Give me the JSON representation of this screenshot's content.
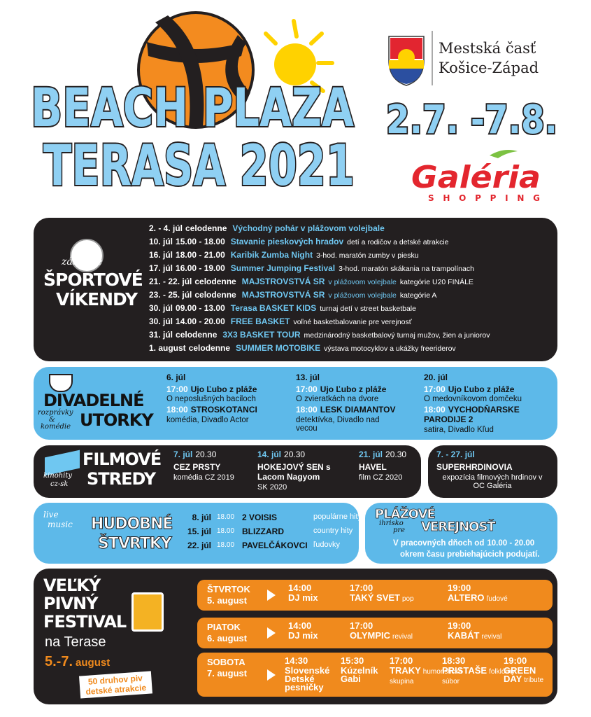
{
  "header": {
    "title_line1": "BEACH PLAZA",
    "title_line2": "TERASA 2021",
    "dates": "2.7. -7.8.",
    "municipality_line1": "Mestská časť",
    "municipality_line2": "Košice-Západ",
    "sponsor": "Galéria",
    "sponsor_sub": "SHOPPING"
  },
  "sports": {
    "label_small": "zábavné",
    "label_line1": "ŠPORTOVÉ",
    "label_line2": "VÍKENDY",
    "events": [
      {
        "date": "2. - 4. júl",
        "time": "celodenne",
        "event": "Východný pohár v plážovom volejbale"
      },
      {
        "date": "10. júl",
        "time": "15.00 - 18.00",
        "event": "Stavanie pieskových hradov",
        "detail": "detí a rodičov a detské atrakcie"
      },
      {
        "date": "16. júl",
        "time": "18.00 - 21.00",
        "event": "Karibik Zumba Night",
        "detail": "3-hod. maratón zumby v piesku"
      },
      {
        "date": "17. júl",
        "time": "16.00 - 19.00",
        "event": "Summer Jumping Festival",
        "detail": "3-hod. maratón skákania na trampolínach"
      },
      {
        "date": "21. - 22. júl",
        "time": "celodenne",
        "event": "MAJSTROVSTVÁ SR",
        "event_sub": "v plážovom volejbale",
        "detail": "kategórie U20 FINÁLE"
      },
      {
        "date": "23. - 25. júl",
        "time": "celodenne",
        "event": "MAJSTROVSTVÁ SR",
        "event_sub": "v plážovom volejbale",
        "detail": "kategórie A"
      },
      {
        "date": "30. júl",
        "time": "09.00 - 13.00",
        "event": "Terasa BASKET KIDS",
        "detail": "turnaj detí v street basketbale"
      },
      {
        "date": "30. júl",
        "time": "14.00 - 20.00",
        "event": "FREE BASKET",
        "detail": "voľné basketbalovanie pre verejnosť"
      },
      {
        "date": "31. júl",
        "time": "celodenne",
        "event": "3X3 BASKET TOUR",
        "detail": "medzinárodný basketbalový turnaj mužov, žien a juniorov"
      },
      {
        "date": "1. august",
        "time": "celodenne",
        "event": "SUMMER MOTOBIKE",
        "detail": "výstava motocyklov a ukážky freeriderov"
      }
    ]
  },
  "theatre": {
    "label_line1": "DIVADELNÉ",
    "label_line2": "UTORKY",
    "label_small1": "rozprávky",
    "label_small2": "&",
    "label_small3": "komédie",
    "shows": [
      {
        "date": "6. júl",
        "time1": "17:00",
        "kids_show": "Ujo Ľubo z pláže",
        "kids_title": "O neposlušných bacilоch",
        "time2": "18:00",
        "show": "STROSKOTANCI",
        "info": "komédia, Divadlo Actor"
      },
      {
        "date": "13. júl",
        "time1": "17:00",
        "kids_show": "Ujo Ľubo z pláže",
        "kids_title": "O zvieratkách na dvore",
        "time2": "18:00",
        "show": "LESK DIAMANTOV",
        "info": "detektívka, Divadlo nad vecou"
      },
      {
        "date": "20. júl",
        "time1": "17:00",
        "kids_show": "Ujo Ľubo z pláže",
        "kids_title": "O medovníkovom domčeku",
        "time2": "18:00",
        "show": "VYCHODŇARSKE PARODIJE 2",
        "info": "satira, Divadlo Kľud"
      }
    ]
  },
  "film": {
    "label_line1": "FILMOVÉ",
    "label_line2": "STREDY",
    "label_small1": "kinohity",
    "label_small2": "cz-sk",
    "films": [
      {
        "date": "7. júl",
        "time": "20.30",
        "title": "CEZ PRSTY",
        "info": "komédia CZ 2019"
      },
      {
        "date": "14. júl",
        "time": "20.30",
        "title": "HOKEJOVÝ SEN s Lacom Nagyom",
        "info": "SK 2020"
      },
      {
        "date": "21. júl",
        "time": "20.30",
        "title": "HAVEL",
        "info": "film CZ 2020"
      }
    ],
    "exhibition": {
      "date": "7. - 27. júl",
      "title": "SUPERHRDINOVIA",
      "info": "expozícia filmových hrdinov v OC Galéria"
    }
  },
  "music": {
    "label_line1": "HUDOBNÉ",
    "label_line2": "ŠTVRTKY",
    "label_small1": "live",
    "label_small2": "music",
    "concerts": [
      {
        "date": "8. júl",
        "time": "18.00",
        "band": "2 VOISIS",
        "genre": "populárne hity"
      },
      {
        "date": "15. júl",
        "time": "18.00",
        "band": "BLIZZARD",
        "genre": "country hity"
      },
      {
        "date": "22. júl",
        "time": "18.00",
        "band": "PAVELČÁKOVCI",
        "genre": "ľudovky"
      }
    ]
  },
  "playground": {
    "label_line1": "PLÁŽOVÉ",
    "label_small1": "ihrisko",
    "label_small2": "pre",
    "label_line2": "VEREJNOSŤ",
    "hours_text": "V pracovných dňoch od",
    "hours": "10.00 - 20.00",
    "note": "okrem času prebiehajúcich podujatí."
  },
  "beer": {
    "label_line1": "VEĽKÝ",
    "label_line2": "PIVNÝ",
    "label_line3": "FESTIVAL",
    "label_line4": "na Terase",
    "dates": "5.-7.",
    "month": "august",
    "badge_line1": "50 druhov piv",
    "badge_line2": "detské atrakcie",
    "days": [
      {
        "day": "ŠTVRTOK",
        "date": "5. august",
        "acts": [
          {
            "time": "14:00",
            "name": "DJ mix"
          },
          {
            "time": "17:00",
            "name": "TAKÝ SVET",
            "genre": "pop"
          },
          {
            "time": "19:00",
            "name": "ALTERO",
            "genre": "ľudové"
          }
        ]
      },
      {
        "day": "PIATOK",
        "date": "6. august",
        "acts": [
          {
            "time": "14:00",
            "name": "DJ mix"
          },
          {
            "time": "17:00",
            "name": "OLYMPIC",
            "genre": "revival"
          },
          {
            "time": "19:00",
            "name": "KABÁT",
            "genre": "revival"
          }
        ]
      },
      {
        "day": "SOBOTA",
        "date": "7. august",
        "acts": [
          {
            "time": "14:30",
            "name": "Slovenské Detské pesničky"
          },
          {
            "time": "15:30",
            "name": "Kúzelník Gabi"
          },
          {
            "time": "17:00",
            "name": "TRAKY",
            "genre": "humoristická skupina"
          },
          {
            "time": "18:30",
            "name": "PRISTAŠE",
            "genre": "folklórny súbor"
          },
          {
            "time": "19:00",
            "name": "GREEN DAY",
            "genre": "tribute"
          }
        ]
      }
    ]
  }
}
